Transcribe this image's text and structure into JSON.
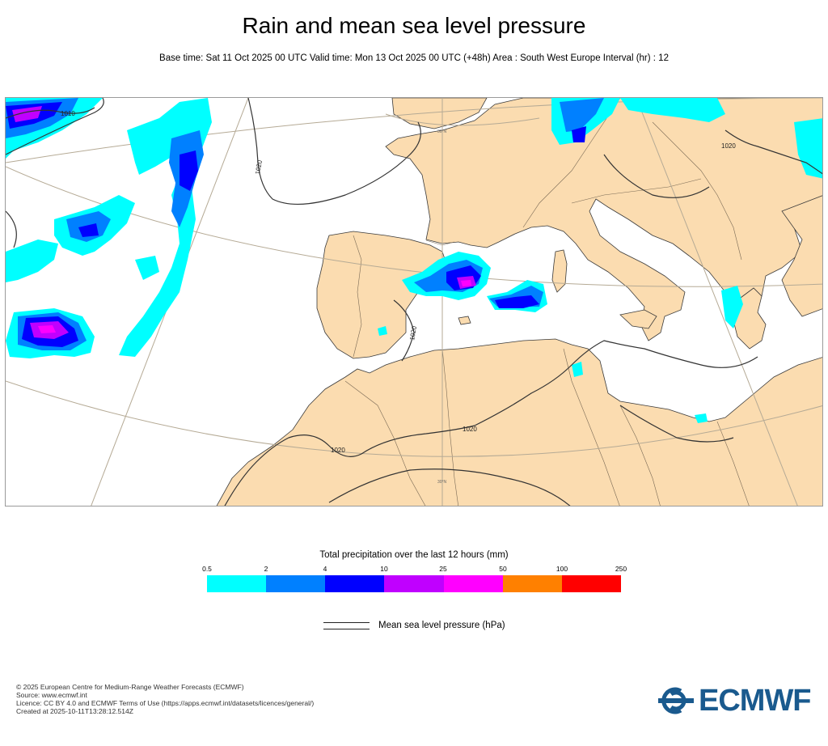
{
  "header": {
    "title": "Rain and mean sea level pressure",
    "subtitle": "Base time: Sat 11 Oct 2025 00 UTC Valid time: Mon 13 Oct 2025 00 UTC (+48h) Area : South West Europe Interval (hr) : 12"
  },
  "map": {
    "isobar_labels": [
      "1010",
      "1020",
      "1020",
      "1020",
      "1020",
      "1020"
    ],
    "grid_labels": [
      "30°N",
      "30°N"
    ],
    "colors": {
      "land": "#fbdcb0",
      "sea": "#ffffff",
      "isobar": "#333333",
      "graticule": "#b5aa95",
      "border": "#a08a6a"
    }
  },
  "legend": {
    "title": "Total precipitation over the last 12 hours (mm)",
    "ticks": [
      "0.5",
      "2",
      "4",
      "10",
      "25",
      "50",
      "100",
      "250"
    ],
    "colors": [
      "#00ffff",
      "#0080ff",
      "#0000ff",
      "#c000ff",
      "#ff00ff",
      "#ff8000",
      "#ff0000"
    ],
    "isobar_label": "Mean sea level pressure (hPa)"
  },
  "footer": {
    "lines": [
      "© 2025 European Centre for Medium-Range Weather Forecasts (ECMWF)",
      "Source: www.ecmwf.int",
      "Licence: CC BY 4.0 and ECMWF Terms of Use (https://apps.ecmwf.int/datasets/licences/general/)",
      "Created at 2025-10-11T13:28:12.514Z"
    ]
  },
  "logo": {
    "text": "ECMWF",
    "color": "#1a5a8e"
  }
}
